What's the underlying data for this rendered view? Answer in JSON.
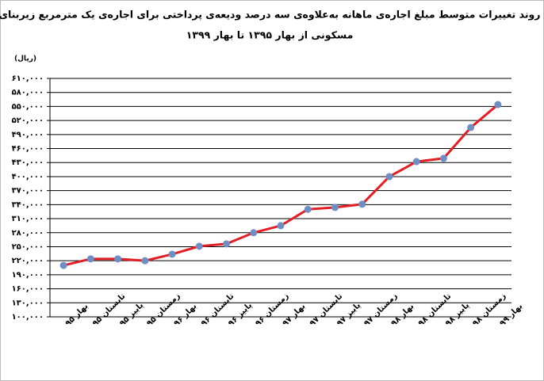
{
  "chart_data": {
    "type": "line",
    "title": [
      "روند تغییرات متوسط مبلغ اجاره‌ی ماهانه به‌علاوه‌ی سه درصد ودیعه‌ی پرداختی برای اجاره‌ی یک مترمربع زیربنای",
      "مسکونی از بهار ۱۳۹۵ تا بهار ۱۳۹۹"
    ],
    "y_label": "(ریال)",
    "categories": [
      "بهار ۹۵",
      "تابستان ۹۵",
      "پاییز ۹۵",
      "زمستان ۹۵",
      "بهار ۹۶",
      "تابستان ۹۶",
      "پاییز ۹۶",
      "زمستان ۹۶",
      "بهار ۹۷",
      "تابستان ۹۷",
      "پاییز ۹۷",
      "زمستان ۹۷",
      "بهار ۹۸",
      "تابستان ۹۸",
      "پاییز ۹۸",
      "زمستان ۹۸",
      "بهار ۹۹"
    ],
    "values": [
      210000,
      224000,
      224000,
      220000,
      234000,
      251000,
      256000,
      280000,
      295000,
      330000,
      334000,
      341000,
      400000,
      432000,
      439000,
      505000,
      554000
    ],
    "color": "#e31e24",
    "marker_color": "#6f8fc4",
    "ylim": [
      100000,
      610000
    ],
    "yticks": [
      {
        "value": 610000,
        "label": "۶۱۰,۰۰۰"
      },
      {
        "value": 580000,
        "label": "۵۸۰,۰۰۰"
      },
      {
        "value": 550000,
        "label": "۵۵۰,۰۰۰"
      },
      {
        "value": 520000,
        "label": "۵۲۰,۰۰۰"
      },
      {
        "value": 490000,
        "label": "۴۹۰,۰۰۰"
      },
      {
        "value": 460000,
        "label": "۴۶۰,۰۰۰"
      },
      {
        "value": 430000,
        "label": "۴۳۰,۰۰۰"
      },
      {
        "value": 400000,
        "label": "۴۰۰,۰۰۰"
      },
      {
        "value": 370000,
        "label": "۳۷۰,۰۰۰"
      },
      {
        "value": 340000,
        "label": "۳۴۰,۰۰۰"
      },
      {
        "value": 310000,
        "label": "۳۱۰,۰۰۰"
      },
      {
        "value": 280000,
        "label": "۲۸۰,۰۰۰"
      },
      {
        "value": 250000,
        "label": "۲۵۰,۰۰۰"
      },
      {
        "value": 220000,
        "label": "۲۲۰,۰۰۰"
      },
      {
        "value": 190000,
        "label": "۱۹۰,۰۰۰"
      },
      {
        "value": 160000,
        "label": "۱۶۰,۰۰۰"
      },
      {
        "value": 130000,
        "label": "۱۳۰,۰۰۰"
      },
      {
        "value": 100000,
        "label": "۱۰۰,۰۰۰"
      }
    ],
    "grid": true
  }
}
